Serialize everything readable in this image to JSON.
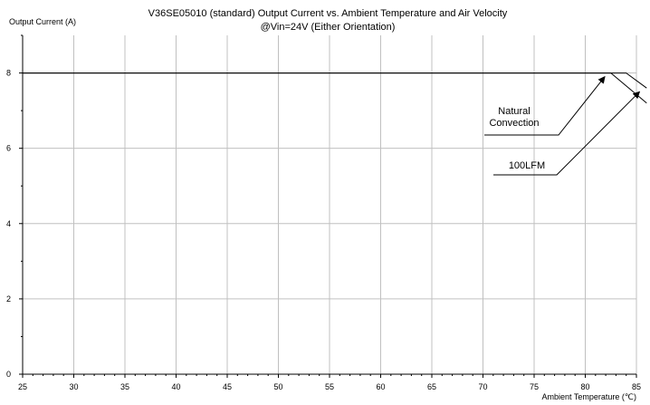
{
  "chart_data": {
    "type": "line",
    "title_line1": "V36SE05010 (standard)  Output Current vs. Ambient Temperature and Air Velocity",
    "title_line2": "@Vin=24V (Either Orientation)",
    "ylabel": "Output Current (A)",
    "xlabel": "Ambient Temperature (℃)",
    "xlim": [
      25,
      85
    ],
    "ylim": [
      0,
      9
    ],
    "x_ticks": [
      25,
      30,
      35,
      40,
      45,
      50,
      55,
      60,
      65,
      70,
      75,
      80,
      85
    ],
    "y_ticks": [
      0,
      2,
      4,
      6,
      8
    ],
    "grid": true,
    "legend": "none",
    "series": [
      {
        "name": "Natural Convection",
        "x": [
          25,
          84,
          86
        ],
        "y": [
          8,
          8,
          7.6
        ]
      },
      {
        "name": "100LFM",
        "x": [
          25,
          82.5,
          86
        ],
        "y": [
          8,
          8,
          7.2
        ]
      }
    ],
    "annotations": [
      {
        "text_lines": [
          "Natural",
          "Convection"
        ],
        "target_series": "Natural Convection",
        "arrow_to": [
          81.9,
          7.9
        ]
      },
      {
        "text_lines": [
          "100LFM"
        ],
        "target_series": "100LFM",
        "arrow_to": [
          85.3,
          7.5
        ]
      }
    ],
    "colors": {
      "line": "#000000",
      "grid": "#c0c0c0",
      "axis": "#000000"
    }
  }
}
